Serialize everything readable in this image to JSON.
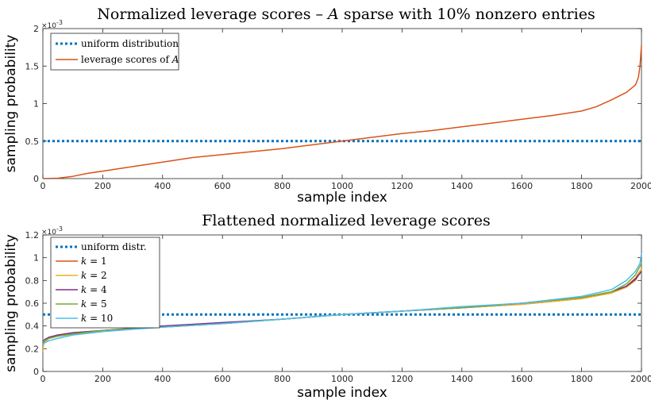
{
  "chart_data": [
    {
      "type": "line",
      "title": "Normalized leverage scores – A sparse with 10% nonzero entries",
      "title_parts": {
        "pre": "Normalized leverage scores – ",
        "var": "A",
        "post": " sparse with 10% nonzero entries"
      },
      "xlabel": "sample index",
      "ylabel": "sampling probability",
      "xlim": [
        0,
        2000
      ],
      "ylim": [
        0,
        0.002
      ],
      "y_exponent_label": "×10",
      "y_exponent_power": "-3",
      "x_ticks": [
        "0",
        "200",
        "400",
        "600",
        "800",
        "1000",
        "1200",
        "1400",
        "1600",
        "1800",
        "2000"
      ],
      "x_tick_values": [
        0,
        200,
        400,
        600,
        800,
        1000,
        1200,
        1400,
        1600,
        1800,
        2000
      ],
      "y_ticks": [
        "0",
        "0.5",
        "1",
        "1.5",
        "2"
      ],
      "y_tick_values": [
        0,
        0.0005,
        0.001,
        0.0015,
        0.002
      ],
      "grid": false,
      "legend_position": "top-left",
      "series": [
        {
          "name": "uniform distribution",
          "name_parts": {
            "pre": "uniform distribution",
            "var": "",
            "post": ""
          },
          "style": "dotted",
          "color": "#0072BD",
          "x": [
            0,
            2000
          ],
          "y": [
            0.0005,
            0.0005
          ]
        },
        {
          "name": "leverage scores of A",
          "name_parts": {
            "pre": "leverage scores of ",
            "var": "A",
            "post": ""
          },
          "style": "solid",
          "color": "#D95319",
          "x": [
            0,
            50,
            100,
            150,
            200,
            300,
            400,
            500,
            600,
            700,
            800,
            900,
            1000,
            1100,
            1200,
            1300,
            1400,
            1500,
            1600,
            1700,
            1800,
            1850,
            1900,
            1950,
            1980,
            1990,
            1995,
            2000
          ],
          "y": [
            0.0,
            5e-06,
            3e-05,
            7e-05,
            0.0001,
            0.00016,
            0.00022,
            0.00028,
            0.00032,
            0.00036,
            0.0004,
            0.00045,
            0.0005,
            0.00055,
            0.0006,
            0.00064,
            0.00069,
            0.00074,
            0.00079,
            0.00084,
            0.0009,
            0.00096,
            0.00105,
            0.00115,
            0.00125,
            0.00135,
            0.0015,
            0.00178
          ]
        }
      ]
    },
    {
      "type": "line",
      "title": "Flattened normalized leverage scores",
      "title_parts": {
        "pre": "Flattened normalized leverage scores",
        "var": "",
        "post": ""
      },
      "xlabel": "sample index",
      "ylabel": "sampling probability",
      "xlim": [
        0,
        2000
      ],
      "ylim": [
        0,
        0.0012
      ],
      "y_exponent_label": "×10",
      "y_exponent_power": "-3",
      "x_ticks": [
        "0",
        "200",
        "400",
        "600",
        "800",
        "1000",
        "1200",
        "1400",
        "1600",
        "1800",
        "2000"
      ],
      "x_tick_values": [
        0,
        200,
        400,
        600,
        800,
        1000,
        1200,
        1400,
        1600,
        1800,
        2000
      ],
      "y_ticks": [
        "0",
        "0.2",
        "0.4",
        "0.6",
        "0.8",
        "1",
        "1.2"
      ],
      "y_tick_values": [
        0,
        0.0002,
        0.0004,
        0.0006,
        0.0008,
        0.001,
        0.0012
      ],
      "grid": false,
      "legend_position": "top-left",
      "series": [
        {
          "name": "uniform distr.",
          "name_parts": {
            "pre": "uniform distr.",
            "var": "",
            "post": ""
          },
          "style": "dotted",
          "color": "#0072BD",
          "x": [
            0,
            2000
          ],
          "y": [
            0.0005,
            0.0005
          ]
        },
        {
          "name": "k = 1",
          "name_parts": {
            "pre": "",
            "var": "k",
            "post": " = 1"
          },
          "style": "solid",
          "color": "#D95319",
          "x": [
            0,
            5,
            20,
            50,
            100,
            200,
            400,
            600,
            800,
            1000,
            1200,
            1400,
            1600,
            1800,
            1900,
            1950,
            1980,
            2000
          ],
          "y": [
            0.00022,
            0.00027,
            0.0003,
            0.00032,
            0.00034,
            0.00036,
            0.00039,
            0.00042,
            0.00046,
            0.0005,
            0.00053,
            0.00056,
            0.00059,
            0.00064,
            0.00069,
            0.00075,
            0.00082,
            0.0009
          ]
        },
        {
          "name": "k = 2",
          "name_parts": {
            "pre": "",
            "var": "k",
            "post": " = 2"
          },
          "style": "solid",
          "color": "#EDB120",
          "x": [
            0,
            3,
            20,
            50,
            100,
            200,
            400,
            600,
            800,
            1000,
            1200,
            1400,
            1600,
            1800,
            1900,
            1950,
            1980,
            2000
          ],
          "y": [
            0.00017,
            0.00025,
            0.00029,
            0.00031,
            0.00033,
            0.00036,
            0.00039,
            0.00042,
            0.00046,
            0.0005,
            0.00053,
            0.00056,
            0.00059,
            0.00064,
            0.00069,
            0.00074,
            0.0008,
            0.0009
          ]
        },
        {
          "name": "k = 4",
          "name_parts": {
            "pre": "",
            "var": "k",
            "post": " = 4"
          },
          "style": "solid",
          "color": "#7E2F8E",
          "x": [
            0,
            5,
            20,
            50,
            100,
            200,
            400,
            600,
            800,
            1000,
            1200,
            1400,
            1600,
            1800,
            1900,
            1950,
            1980,
            2000
          ],
          "y": [
            0.00025,
            0.00028,
            0.0003,
            0.00032,
            0.00034,
            0.00036,
            0.0004,
            0.00043,
            0.00046,
            0.0005,
            0.00053,
            0.00056,
            0.0006,
            0.00065,
            0.0007,
            0.00075,
            0.00081,
            0.00088
          ]
        },
        {
          "name": "k = 5",
          "name_parts": {
            "pre": "",
            "var": "k",
            "post": " = 5"
          },
          "style": "solid",
          "color": "#77AC30",
          "x": [
            0,
            5,
            20,
            50,
            100,
            200,
            400,
            600,
            800,
            1000,
            1200,
            1400,
            1600,
            1800,
            1900,
            1950,
            1980,
            2000
          ],
          "y": [
            0.00024,
            0.00027,
            0.00029,
            0.00031,
            0.00033,
            0.00036,
            0.00039,
            0.00042,
            0.00046,
            0.0005,
            0.00053,
            0.00056,
            0.0006,
            0.00065,
            0.0007,
            0.00077,
            0.00085,
            0.00095
          ]
        },
        {
          "name": "k = 10",
          "name_parts": {
            "pre": "",
            "var": "k",
            "post": " = 10"
          },
          "style": "solid",
          "color": "#4DBEEE",
          "x": [
            0,
            5,
            20,
            50,
            100,
            200,
            400,
            600,
            800,
            1000,
            1200,
            1400,
            1600,
            1800,
            1900,
            1950,
            1980,
            1995,
            2000
          ],
          "y": [
            0.00023,
            0.00025,
            0.00027,
            0.00029,
            0.00032,
            0.00035,
            0.00039,
            0.00042,
            0.00046,
            0.0005,
            0.00053,
            0.00057,
            0.0006,
            0.00066,
            0.00072,
            0.0008,
            0.00088,
            0.00095,
            0.00104
          ]
        }
      ]
    }
  ]
}
